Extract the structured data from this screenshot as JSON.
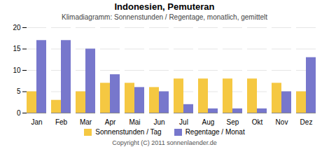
{
  "chart_data": {
    "type": "bar",
    "title": "Indonesien, Pemuteran",
    "subtitle": "Klimadiagramm: Sonnenstunden / Regentage, monatlich, gemittelt",
    "categories": [
      "Jan",
      "Feb",
      "Mar",
      "Apr",
      "Mai",
      "Jun",
      "Jul",
      "Aug",
      "Sep",
      "Okt",
      "Nov",
      "Dez"
    ],
    "series": [
      {
        "name": "Sonnenstunden / Tag",
        "color": "#F5C842",
        "values": [
          5,
          3,
          5,
          7,
          7,
          6,
          8,
          8,
          8,
          8,
          7,
          5
        ]
      },
      {
        "name": "Regentage / Monat",
        "color": "#7777CC",
        "values": [
          17,
          17,
          15,
          9,
          6,
          5,
          2,
          1,
          1,
          1,
          5,
          13
        ]
      }
    ],
    "ylim": [
      0,
      20
    ],
    "yticks": [
      0,
      5,
      10,
      15,
      20
    ],
    "grid": true,
    "legend": "bottom",
    "annotations": [
      "Copyright (C) 2011 sonnenlaender.de"
    ]
  }
}
